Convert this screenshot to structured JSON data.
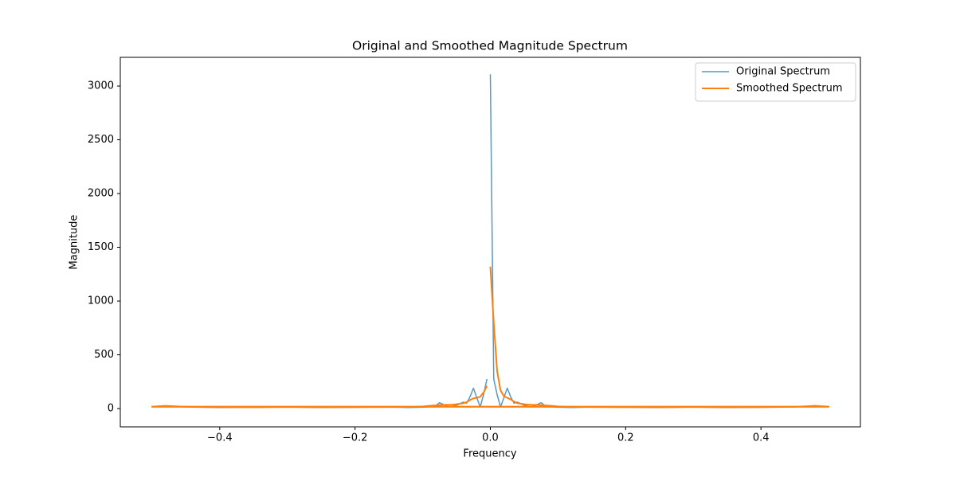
{
  "chart_data": {
    "type": "line",
    "title": "Original and Smoothed Magnitude Spectrum",
    "x_label": "Frequency",
    "y_label": "Magnitude",
    "x": [
      0,
      0.005,
      0.01,
      0.015,
      0.02,
      0.025,
      0.03,
      0.035,
      0.04,
      0.05,
      0.06,
      0.07,
      0.075,
      0.08,
      0.09,
      0.1,
      0.12,
      0.15,
      0.2,
      0.25,
      0.3,
      0.35,
      0.4,
      0.45,
      0.48,
      0.5,
      -0.5,
      -0.48,
      -0.45,
      -0.4,
      -0.35,
      -0.3,
      -0.25,
      -0.2,
      -0.15,
      -0.12,
      -0.1,
      -0.09,
      -0.08,
      -0.075,
      -0.07,
      -0.06,
      -0.05,
      -0.04,
      -0.035,
      -0.03,
      -0.025,
      -0.02,
      -0.015,
      -0.01,
      -0.005
    ],
    "series": [
      {
        "name": "Original Spectrum",
        "color": "#1f77b4",
        "alpha": 0.75,
        "line_width": 1.5,
        "values": [
          3110,
          275,
          130,
          15,
          100,
          190,
          110,
          50,
          60,
          30,
          15,
          40,
          55,
          30,
          15,
          12,
          10,
          14,
          12,
          10,
          14,
          10,
          12,
          15,
          25,
          15,
          15,
          25,
          15,
          10,
          12,
          14,
          10,
          12,
          14,
          10,
          12,
          15,
          30,
          55,
          40,
          15,
          30,
          60,
          50,
          110,
          190,
          100,
          15,
          130,
          275
        ]
      },
      {
        "name": "Smoothed Spectrum",
        "color": "#ff7f0e",
        "alpha": 1,
        "line_width": 2,
        "values": [
          1320,
          800,
          350,
          170,
          115,
          100,
          85,
          65,
          50,
          40,
          35,
          35,
          33,
          30,
          25,
          20,
          15,
          14,
          13,
          12,
          14,
          12,
          13,
          16,
          25,
          18,
          18,
          25,
          16,
          13,
          12,
          14,
          12,
          13,
          14,
          15,
          20,
          25,
          30,
          33,
          35,
          35,
          40,
          50,
          60,
          80,
          95,
          100,
          110,
          150,
          210
        ]
      }
    ],
    "xlim": [
      -0.547,
      0.547
    ],
    "xticks": [
      {
        "value": -0.4,
        "label": "−0.4"
      },
      {
        "value": -0.2,
        "label": "−0.2"
      },
      {
        "value": 0,
        "label": "0.0"
      },
      {
        "value": 0.2,
        "label": "0.2"
      },
      {
        "value": 0.4,
        "label": "0.4"
      }
    ],
    "ylim": [
      -170,
      3267
    ],
    "yticks": [
      0,
      500,
      1000,
      1500,
      2000,
      2500,
      3000
    ],
    "grid": false,
    "legend": "upper right"
  }
}
